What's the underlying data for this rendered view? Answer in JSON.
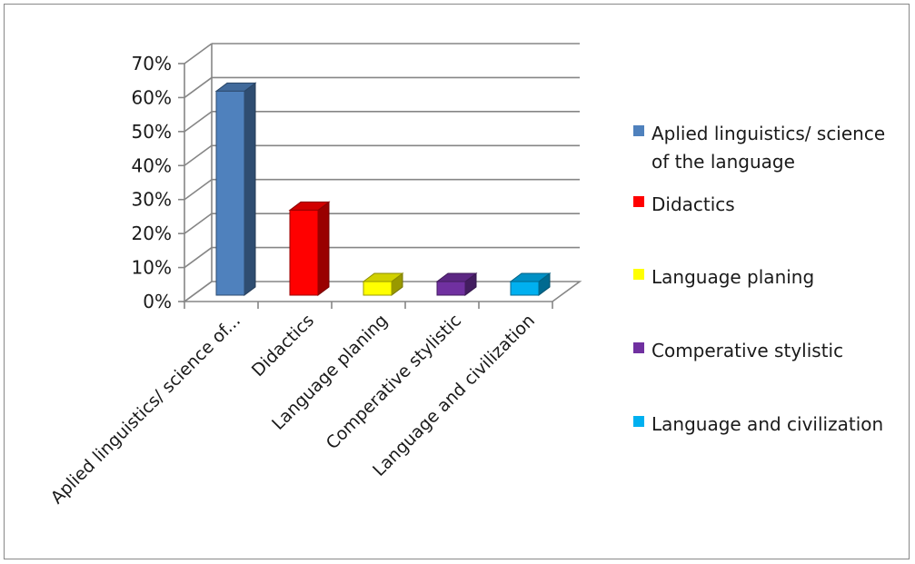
{
  "chart_data": {
    "type": "bar",
    "title": "",
    "xlabel": "",
    "ylabel": "",
    "categories": [
      "Aplied linguistics/ science of...",
      "Didactics",
      "Language planing",
      "Comperative stylistic",
      "Language and civilization"
    ],
    "values": [
      0.6,
      0.25,
      0.04,
      0.04,
      0.04
    ],
    "ylim": [
      0,
      0.7
    ],
    "yticks": [
      "0%",
      "10%",
      "20%",
      "30%",
      "40%",
      "50%",
      "60%",
      "70%"
    ],
    "grid": true,
    "three_d": true,
    "legend_position": "right",
    "legend": [
      {
        "lines": [
          "Aplied linguistics/ science",
          "of the language"
        ],
        "color": "#4F81BD"
      },
      {
        "lines": [
          "Didactics"
        ],
        "color": "#FF0000"
      },
      {
        "lines": [
          "Language planing"
        ],
        "color": "#FFFF00"
      },
      {
        "lines": [
          "Comperative stylistic"
        ],
        "color": "#7030A0"
      },
      {
        "lines": [
          "Language and civilization"
        ],
        "color": "#00B0F0"
      }
    ],
    "bar_colors": [
      "#4F81BD",
      "#FF0000",
      "#FFFF00",
      "#7030A0",
      "#00B0F0"
    ]
  }
}
